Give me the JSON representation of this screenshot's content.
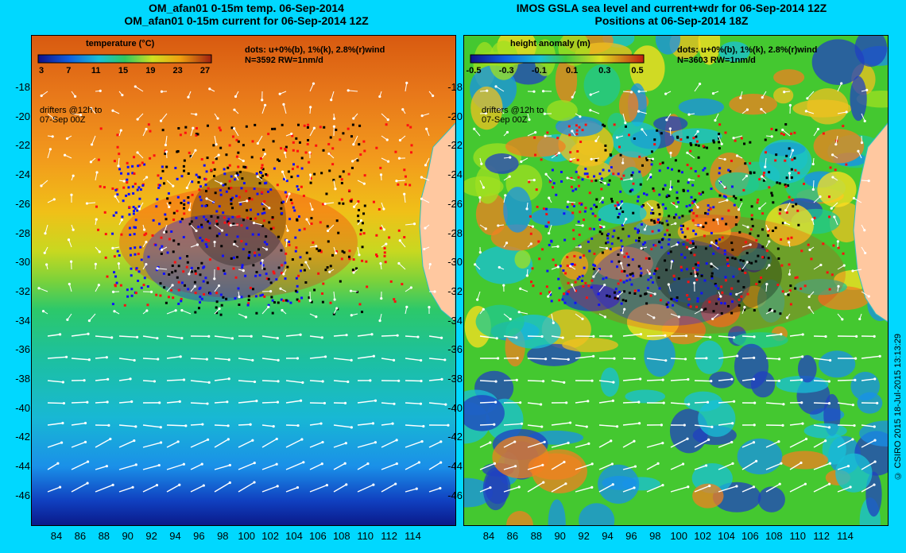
{
  "left_panel": {
    "title_line1": "OM_afan01 0-15m temp. 06-Sep-2014",
    "title_line2": "OM_afan01 0-15m current for 06-Sep-2014 12Z",
    "colorbar_title": "temperature (°C)",
    "colorbar_ticks": [
      "3",
      "7",
      "11",
      "15",
      "19",
      "23",
      "27"
    ],
    "dots_line1": "dots: u+0%(b), 1%(k), 2.8%(r)wind",
    "dots_line2": "N=3592 RW=1nm/d",
    "drifter_line1": "drifters @12h to",
    "drifter_line2": "07-Sep 00Z"
  },
  "right_panel": {
    "title_line1": "IMOS GSLA sea level and current+wdr for 06-Sep-2014 12Z",
    "title_line2": "Positions at 06-Sep-2014 18Z",
    "colorbar_title": "height anomaly (m)",
    "colorbar_ticks": [
      "-0.5",
      "-0.3",
      "-0.1",
      "0.1",
      "0.3",
      "0.5"
    ],
    "dots_line1": "dots: u+0%(b), 1%(k), 2.8%(r)wind",
    "dots_line2": "N=3603 RW=1nm/d",
    "drifter_line1": "drifters @12h to",
    "drifter_line2": "07-Sep 00Z"
  },
  "y_axis_labels": [
    "-18",
    "-20",
    "-22",
    "-24",
    "-26",
    "-28",
    "-30",
    "-32",
    "-34",
    "-36",
    "-38",
    "-40",
    "-42",
    "-44",
    "-46"
  ],
  "x_axis_labels": [
    "84",
    "86",
    "88",
    "90",
    "92",
    "94",
    "96",
    "98",
    "100",
    "102",
    "104",
    "106",
    "108",
    "110",
    "112",
    "114"
  ],
  "credit": "© CSIRO 2015   18-Jul-2015 13:13:29",
  "colors": {
    "background": "#00d8ff",
    "drifter_blue": "#1010ff",
    "drifter_black": "#000000",
    "drifter_red": "#ff1010",
    "land": "#ffc8a0"
  }
}
